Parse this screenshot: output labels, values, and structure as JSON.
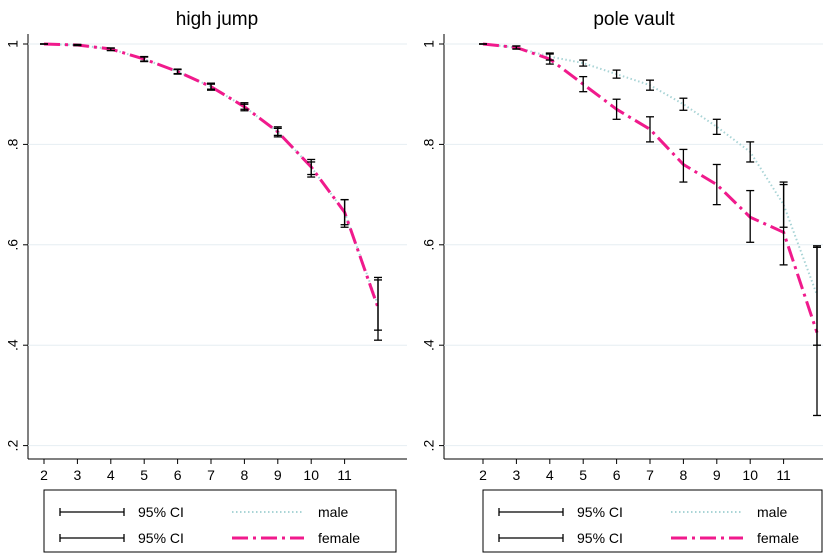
{
  "chart_data": [
    {
      "type": "line",
      "title": "high jump",
      "xlabel": "",
      "ylabel": "",
      "xlim": [
        2,
        12
      ],
      "ylim": [
        0.2,
        1.0
      ],
      "x_ticks": [
        "2",
        "3",
        "4",
        "5",
        "6",
        "7",
        "8",
        "9",
        "10",
        "11"
      ],
      "y_ticks": [
        "1",
        ".8",
        ".6",
        ".4",
        ".2"
      ],
      "grid": true,
      "legend_position": "bottom",
      "series": [
        {
          "name": "male",
          "style": "dotted",
          "color": "#a9d4d6",
          "x": [
            2,
            3,
            4,
            5,
            6,
            7,
            8,
            9,
            10,
            11,
            12
          ],
          "y": [
            1.0,
            0.998,
            0.99,
            0.97,
            0.945,
            0.915,
            0.875,
            0.825,
            0.755,
            0.665,
            0.48
          ],
          "ci": [
            [
              1.0,
              1.0
            ],
            [
              0.997,
              0.999
            ],
            [
              0.987,
              0.992
            ],
            [
              0.965,
              0.975
            ],
            [
              0.94,
              0.95
            ],
            [
              0.908,
              0.922
            ],
            [
              0.867,
              0.883
            ],
            [
              0.815,
              0.835
            ],
            [
              0.74,
              0.77
            ],
            [
              0.64,
              0.69
            ],
            [
              0.43,
              0.53
            ]
          ]
        },
        {
          "name": "female",
          "style": "dashed",
          "color": "#f01a8c",
          "x": [
            2,
            3,
            4,
            5,
            6,
            7,
            8,
            9,
            10,
            11,
            12
          ],
          "y": [
            1.0,
            0.998,
            0.99,
            0.97,
            0.945,
            0.915,
            0.875,
            0.825,
            0.755,
            0.665,
            0.475
          ],
          "ci": [
            [
              1.0,
              1.0
            ],
            [
              0.997,
              0.999
            ],
            [
              0.987,
              0.992
            ],
            [
              0.966,
              0.974
            ],
            [
              0.941,
              0.949
            ],
            [
              0.91,
              0.92
            ],
            [
              0.87,
              0.88
            ],
            [
              0.818,
              0.832
            ],
            [
              0.735,
              0.765
            ],
            [
              0.635,
              0.69
            ],
            [
              0.41,
              0.535
            ]
          ]
        }
      ],
      "legend": [
        {
          "label": "95% CI",
          "kind": "ci"
        },
        {
          "label": "male",
          "kind": "male"
        },
        {
          "label": "95% CI",
          "kind": "ci"
        },
        {
          "label": "female",
          "kind": "female"
        }
      ]
    },
    {
      "type": "line",
      "title": "pole vault",
      "xlabel": "",
      "ylabel": "",
      "xlim": [
        2,
        12
      ],
      "ylim": [
        0.2,
        1.0
      ],
      "x_ticks": [
        "2",
        "3",
        "4",
        "5",
        "6",
        "7",
        "8",
        "9",
        "10",
        "11"
      ],
      "y_ticks": [
        "1",
        ".8",
        ".6",
        ".4",
        ".2"
      ],
      "grid": true,
      "legend_position": "bottom",
      "series": [
        {
          "name": "male",
          "style": "dotted",
          "color": "#a9d4d6",
          "x": [
            2,
            3,
            4,
            5,
            6,
            7,
            8,
            9,
            10,
            11,
            12
          ],
          "y": [
            1.0,
            0.993,
            0.975,
            0.962,
            0.94,
            0.918,
            0.88,
            0.835,
            0.785,
            0.68,
            0.5
          ],
          "ci": [
            [
              1.0,
              1.0
            ],
            [
              0.99,
              0.996
            ],
            [
              0.968,
              0.982
            ],
            [
              0.956,
              0.968
            ],
            [
              0.932,
              0.948
            ],
            [
              0.908,
              0.928
            ],
            [
              0.868,
              0.892
            ],
            [
              0.82,
              0.85
            ],
            [
              0.765,
              0.805
            ],
            [
              0.635,
              0.725
            ],
            [
              0.4,
              0.595
            ]
          ]
        },
        {
          "name": "female",
          "style": "dashed",
          "color": "#f01a8c",
          "x": [
            2,
            3,
            4,
            5,
            6,
            7,
            8,
            9,
            10,
            11,
            12
          ],
          "y": [
            1.0,
            0.993,
            0.97,
            0.92,
            0.87,
            0.83,
            0.76,
            0.72,
            0.655,
            0.625,
            0.425
          ],
          "ci": [
            [
              1.0,
              1.0
            ],
            [
              0.99,
              0.996
            ],
            [
              0.96,
              0.98
            ],
            [
              0.905,
              0.935
            ],
            [
              0.85,
              0.89
            ],
            [
              0.805,
              0.855
            ],
            [
              0.725,
              0.79
            ],
            [
              0.68,
              0.76
            ],
            [
              0.605,
              0.708
            ],
            [
              0.56,
              0.72
            ],
            [
              0.26,
              0.598
            ]
          ]
        }
      ],
      "legend": [
        {
          "label": "95% CI",
          "kind": "ci"
        },
        {
          "label": "male",
          "kind": "male"
        },
        {
          "label": "95% CI",
          "kind": "ci"
        },
        {
          "label": "female",
          "kind": "female"
        }
      ]
    }
  ]
}
